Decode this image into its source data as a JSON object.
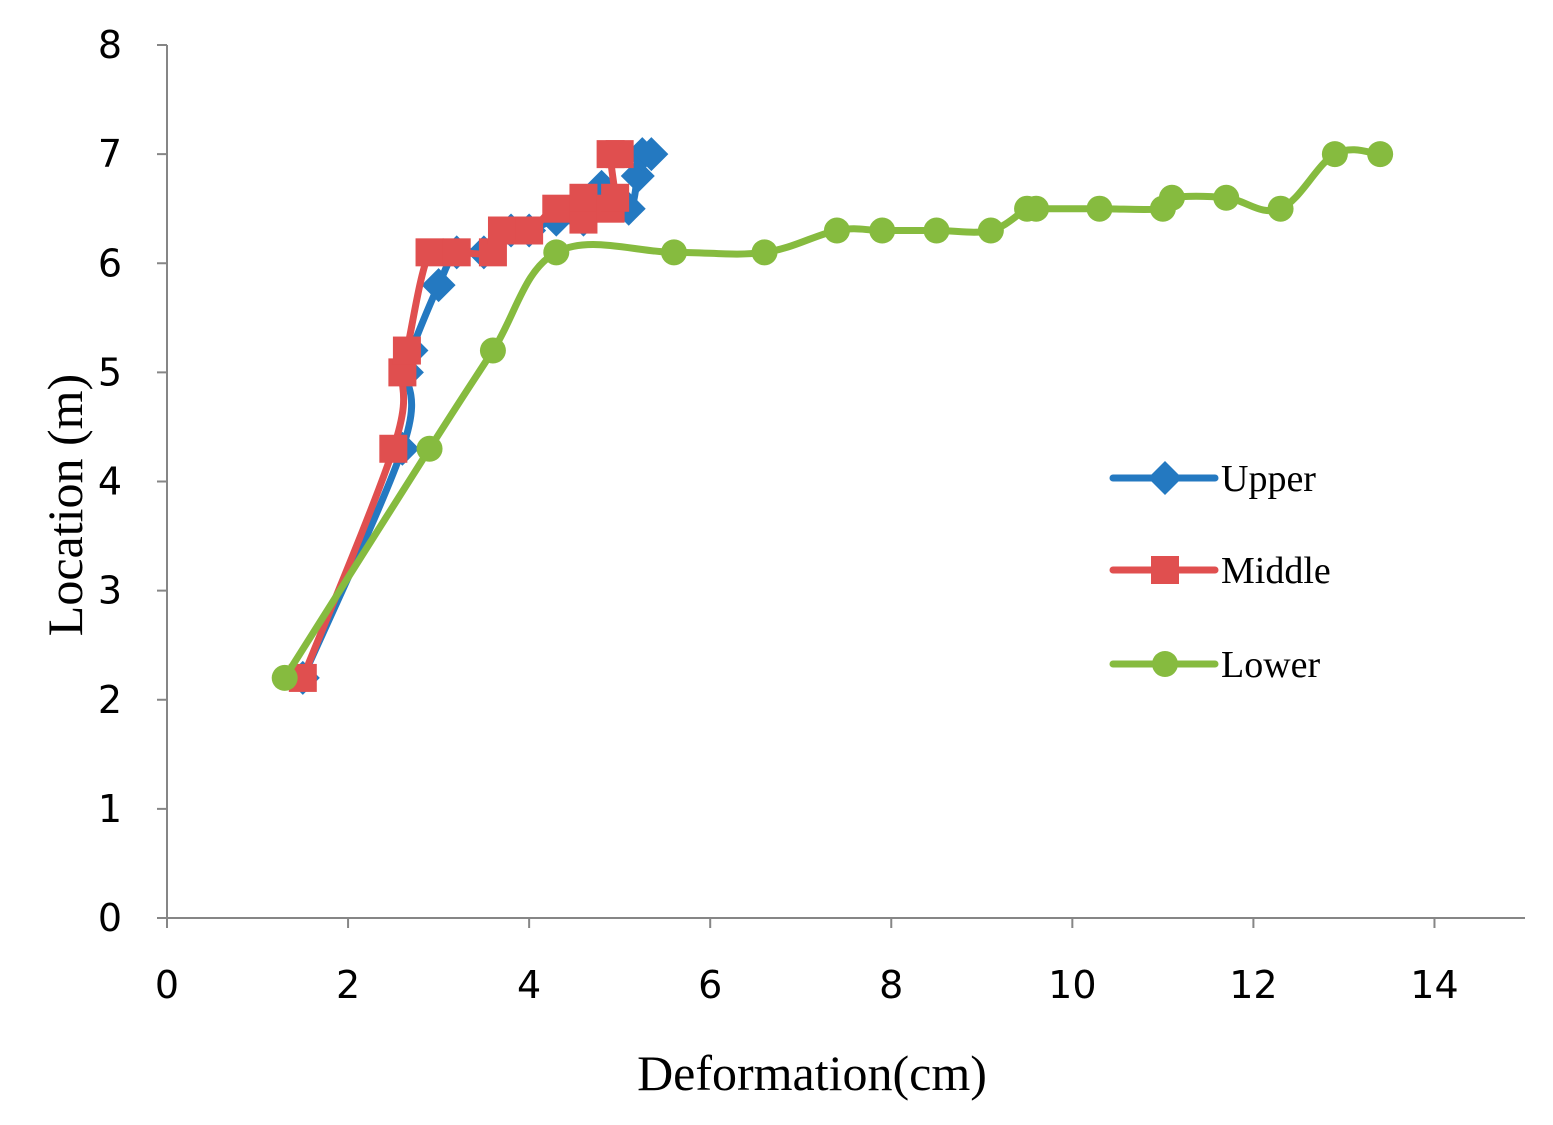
{
  "chart_data": {
    "type": "line",
    "title": "",
    "xlabel": "Deformation(cm)",
    "ylabel": "Location (m)",
    "xlim": [
      0,
      15
    ],
    "ylim": [
      0,
      8
    ],
    "xticks": [
      0,
      2,
      4,
      6,
      8,
      10,
      12,
      14
    ],
    "yticks": [
      0,
      1,
      2,
      3,
      4,
      5,
      6,
      7,
      8
    ],
    "grid": false,
    "legend_position": "right",
    "series": [
      {
        "name": "Upper",
        "color": "#2479c1",
        "marker": "diamond",
        "points": [
          [
            1.5,
            2.2
          ],
          [
            2.6,
            4.3
          ],
          [
            2.65,
            5.0
          ],
          [
            2.7,
            5.2
          ],
          [
            3.0,
            5.8
          ],
          [
            3.2,
            6.1
          ],
          [
            3.5,
            6.1
          ],
          [
            3.8,
            6.3
          ],
          [
            4.0,
            6.3
          ],
          [
            4.3,
            6.4
          ],
          [
            4.6,
            6.4
          ],
          [
            4.8,
            6.7
          ],
          [
            5.1,
            6.5
          ],
          [
            5.2,
            6.8
          ],
          [
            5.25,
            7.0
          ],
          [
            5.35,
            7.0
          ]
        ]
      },
      {
        "name": "Middle",
        "color": "#e04f4f",
        "marker": "square",
        "points": [
          [
            1.5,
            2.2
          ],
          [
            2.5,
            4.3
          ],
          [
            2.6,
            5.0
          ],
          [
            2.65,
            5.2
          ],
          [
            2.9,
            6.1
          ],
          [
            3.2,
            6.1
          ],
          [
            3.6,
            6.1
          ],
          [
            3.7,
            6.3
          ],
          [
            4.0,
            6.3
          ],
          [
            4.3,
            6.5
          ],
          [
            4.6,
            6.4
          ],
          [
            4.6,
            6.6
          ],
          [
            4.9,
            6.5
          ],
          [
            4.95,
            6.6
          ],
          [
            4.9,
            7.0
          ],
          [
            5.0,
            7.0
          ]
        ]
      },
      {
        "name": "Lower",
        "color": "#86bb3f",
        "marker": "circle",
        "points": [
          [
            1.3,
            2.2
          ],
          [
            2.9,
            4.3
          ],
          [
            3.6,
            5.2
          ],
          [
            4.3,
            6.1
          ],
          [
            5.6,
            6.1
          ],
          [
            6.6,
            6.1
          ],
          [
            7.4,
            6.3
          ],
          [
            7.9,
            6.3
          ],
          [
            8.5,
            6.3
          ],
          [
            9.1,
            6.3
          ],
          [
            9.5,
            6.5
          ],
          [
            9.6,
            6.5
          ],
          [
            10.3,
            6.5
          ],
          [
            11.0,
            6.5
          ],
          [
            11.1,
            6.6
          ],
          [
            11.7,
            6.6
          ],
          [
            12.3,
            6.5
          ],
          [
            12.9,
            7.0
          ],
          [
            13.4,
            7.0
          ]
        ]
      }
    ]
  }
}
